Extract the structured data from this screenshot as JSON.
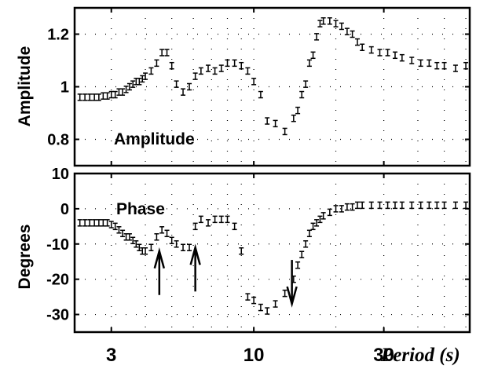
{
  "chart_data": [
    {
      "type": "scatter",
      "panel": "amplitude",
      "inner_label": "Amplitude",
      "ylabel": "Amplitude",
      "xscale": "log",
      "xlim": [
        2.2,
        62
      ],
      "ylim": [
        0.7,
        1.3
      ],
      "yticks": [
        0.8,
        1,
        1.2
      ],
      "ytick_labels": [
        "0.8",
        "1",
        "1.2"
      ],
      "grid": "dotted",
      "x": [
        2.3,
        2.4,
        2.5,
        2.6,
        2.7,
        2.8,
        2.9,
        3.0,
        3.1,
        3.2,
        3.3,
        3.4,
        3.5,
        3.6,
        3.7,
        3.8,
        3.9,
        4.0,
        4.2,
        4.4,
        4.6,
        4.8,
        5.0,
        5.2,
        5.5,
        5.8,
        6.1,
        6.4,
        6.8,
        7.2,
        7.6,
        8.0,
        8.5,
        9.0,
        9.5,
        10.0,
        10.6,
        11.2,
        12.0,
        13.0,
        14.0,
        14.5,
        15.0,
        15.5,
        16.0,
        16.5,
        17.0,
        17.5,
        18.0,
        19.0,
        20.0,
        21.0,
        22.0,
        23.0,
        24.0,
        25.0,
        27.0,
        29.0,
        31.0,
        33.0,
        35.0,
        38.0,
        41.0,
        44.0,
        47.0,
        50.0,
        55.0,
        60.0
      ],
      "y": [
        0.96,
        0.96,
        0.96,
        0.96,
        0.96,
        0.965,
        0.965,
        0.97,
        0.97,
        0.98,
        0.98,
        0.99,
        1.0,
        1.01,
        1.02,
        1.02,
        1.03,
        1.04,
        1.06,
        1.09,
        1.13,
        1.13,
        1.08,
        1.01,
        0.98,
        1.0,
        1.04,
        1.06,
        1.07,
        1.06,
        1.07,
        1.09,
        1.09,
        1.08,
        1.06,
        1.02,
        0.97,
        0.87,
        0.86,
        0.83,
        0.88,
        0.91,
        0.97,
        1.01,
        1.09,
        1.12,
        1.19,
        1.24,
        1.25,
        1.25,
        1.24,
        1.23,
        1.21,
        1.2,
        1.17,
        1.15,
        1.14,
        1.13,
        1.13,
        1.12,
        1.11,
        1.1,
        1.09,
        1.09,
        1.08,
        1.08,
        1.07,
        1.08
      ]
    },
    {
      "type": "scatter",
      "panel": "phase",
      "inner_label": "Phase",
      "ylabel": "Degrees",
      "xlabel": "Period (s)",
      "xscale": "log",
      "xlim": [
        2.2,
        62
      ],
      "ylim": [
        -35,
        10
      ],
      "yticks": [
        -30,
        -20,
        -10,
        0,
        10
      ],
      "ytick_labels": [
        "-30",
        "-20",
        "-10",
        "0",
        "10"
      ],
      "xticks": [
        3,
        10,
        30
      ],
      "xtick_labels": [
        "3",
        "10",
        "30"
      ],
      "grid": "dotted",
      "x": [
        2.3,
        2.4,
        2.5,
        2.6,
        2.7,
        2.8,
        2.9,
        3.0,
        3.1,
        3.2,
        3.3,
        3.4,
        3.5,
        3.6,
        3.7,
        3.8,
        3.9,
        4.0,
        4.2,
        4.4,
        4.6,
        4.8,
        5.0,
        5.2,
        5.5,
        5.8,
        6.1,
        6.4,
        6.8,
        7.2,
        7.6,
        8.0,
        8.5,
        9.0,
        9.5,
        10.0,
        10.6,
        11.2,
        12.0,
        13.0,
        14.0,
        14.5,
        15.0,
        15.5,
        16.0,
        16.5,
        17.0,
        17.5,
        18.0,
        19.0,
        20.0,
        21.0,
        22.0,
        23.0,
        24.0,
        25.0,
        27.0,
        29.0,
        31.0,
        33.0,
        35.0,
        38.0,
        41.0,
        44.0,
        47.0,
        50.0,
        55.0,
        60.0
      ],
      "y": [
        -4,
        -4,
        -4,
        -4,
        -4,
        -4,
        -4,
        -4.5,
        -5,
        -6,
        -7,
        -8,
        -8,
        -9,
        -10,
        -11,
        -12,
        -12,
        -11,
        -8,
        -6,
        -7,
        -9,
        -10,
        -11,
        -11,
        -5,
        -3,
        -4,
        -3,
        -3,
        -3,
        -5,
        -12,
        -25,
        -26,
        -28,
        -29,
        -27,
        -24,
        -20,
        -16,
        -13,
        -10,
        -7,
        -5,
        -4,
        -3,
        -2,
        -1,
        0,
        0,
        0.5,
        0.5,
        1,
        1,
        1,
        1,
        1,
        1,
        1,
        1,
        1,
        1,
        1,
        1,
        1,
        1
      ],
      "arrows": [
        {
          "direction": "up",
          "x": 4.5,
          "y_tip": -12
        },
        {
          "direction": "up",
          "x": 6.1,
          "y_tip": -11
        },
        {
          "direction": "down",
          "x": 13.8,
          "y_tip": -27
        }
      ]
    }
  ]
}
